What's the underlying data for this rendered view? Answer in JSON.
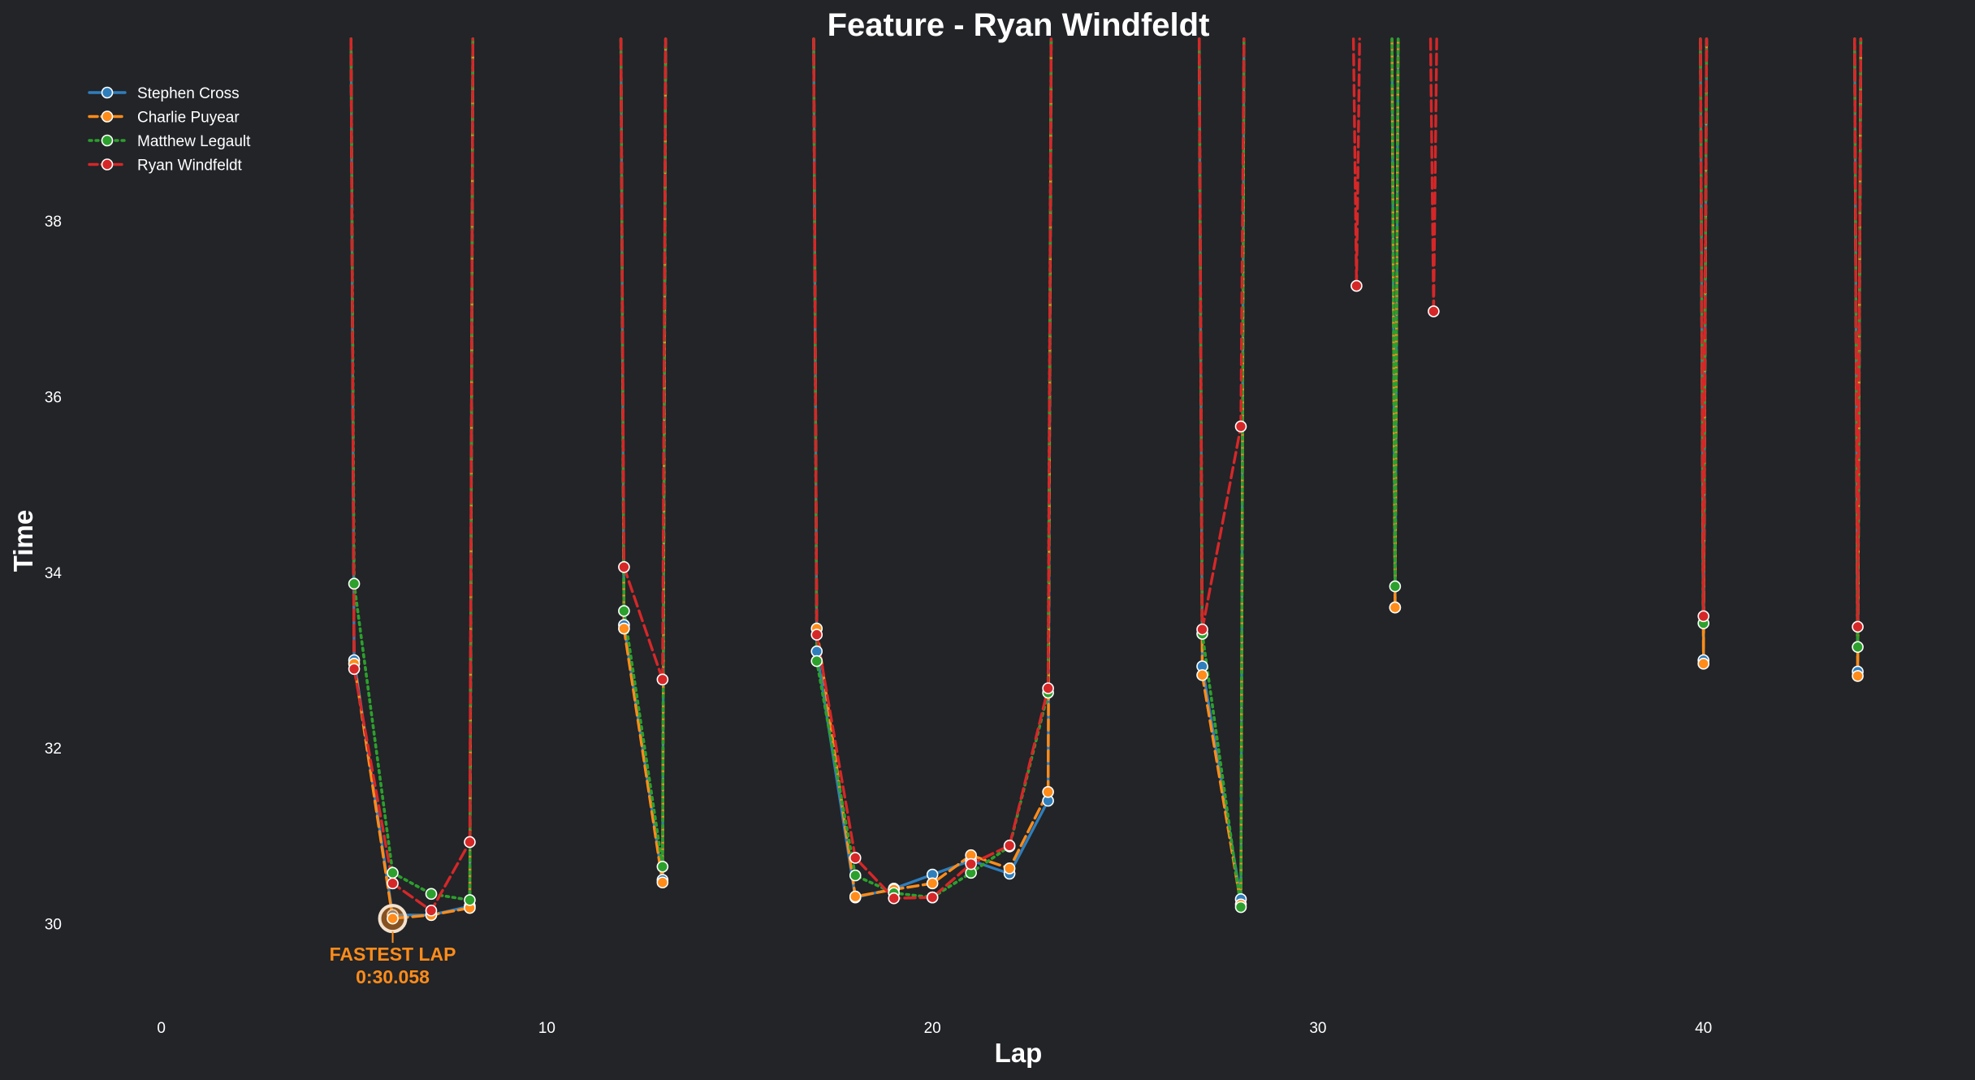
{
  "chart_data": {
    "type": "line",
    "title": "Feature - Ryan Windfeldt",
    "xlabel": "Lap",
    "ylabel": "Time",
    "xlim": [
      -2.5,
      47
    ],
    "ylim": [
      29.1,
      39.7
    ],
    "xticks": [
      0,
      10,
      20,
      30,
      40
    ],
    "yticks": [
      30,
      32,
      34,
      36,
      38
    ],
    "grid": false,
    "legend_position": "top-left",
    "series": [
      {
        "name": "Stephen Cross",
        "color": "#2f7ebc",
        "line_style": "solid",
        "points": [
          [
            5,
            33.0
          ],
          [
            6,
            30.1
          ],
          [
            7,
            30.1
          ],
          [
            8,
            30.2
          ],
          [
            12,
            33.4
          ],
          [
            13,
            30.5
          ],
          [
            17,
            33.1
          ],
          [
            18,
            30.3
          ],
          [
            19,
            30.4
          ],
          [
            20,
            30.56
          ],
          [
            21,
            30.72
          ],
          [
            22,
            30.57
          ],
          [
            23,
            31.4
          ],
          [
            27,
            32.93
          ],
          [
            28,
            30.28
          ],
          [
            32,
            33.6
          ],
          [
            40,
            33.0
          ],
          [
            44,
            32.87
          ]
        ]
      },
      {
        "name": "Charlie Puyear",
        "color": "#ff8c1a",
        "line_style": "dashed",
        "points": [
          [
            5,
            32.96
          ],
          [
            6,
            30.06
          ],
          [
            7,
            30.1
          ],
          [
            8,
            30.18
          ],
          [
            12,
            33.36
          ],
          [
            13,
            30.47
          ],
          [
            17,
            33.36
          ],
          [
            18,
            30.31
          ],
          [
            19,
            30.39
          ],
          [
            20,
            30.46
          ],
          [
            21,
            30.78
          ],
          [
            22,
            30.63
          ],
          [
            23,
            31.5
          ],
          [
            27,
            32.83
          ],
          [
            28,
            30.22
          ],
          [
            32,
            33.6
          ],
          [
            40,
            32.96
          ],
          [
            44,
            32.82
          ]
        ]
      },
      {
        "name": "Matthew Legault",
        "color": "#2ca02c",
        "line_style": "dotted",
        "points": [
          [
            5,
            33.87
          ],
          [
            6,
            30.58
          ],
          [
            7,
            30.34
          ],
          [
            8,
            30.27
          ],
          [
            12,
            33.56
          ],
          [
            13,
            30.65
          ],
          [
            17,
            32.99
          ],
          [
            18,
            30.55
          ],
          [
            19,
            30.35
          ],
          [
            20,
            30.3
          ],
          [
            21,
            30.58
          ],
          [
            22,
            30.88
          ],
          [
            23,
            32.63
          ],
          [
            27,
            33.3
          ],
          [
            28,
            30.19
          ],
          [
            32,
            33.84
          ],
          [
            40,
            33.42
          ],
          [
            44,
            33.15
          ]
        ]
      },
      {
        "name": "Ryan Windfeldt",
        "color": "#d62728",
        "line_style": "dashed",
        "points": [
          [
            5,
            32.9
          ],
          [
            6,
            30.46
          ],
          [
            7,
            30.15
          ],
          [
            8,
            30.93
          ],
          [
            12,
            34.06
          ],
          [
            13,
            32.78
          ],
          [
            17,
            33.29
          ],
          [
            18,
            30.75
          ],
          [
            19,
            30.29
          ],
          [
            20,
            30.3
          ],
          [
            21,
            30.68
          ],
          [
            22,
            30.89
          ],
          [
            23,
            32.68
          ],
          [
            27,
            33.35
          ],
          [
            28,
            35.66
          ],
          [
            31,
            37.26
          ],
          [
            33,
            36.97
          ],
          [
            40,
            33.5
          ],
          [
            44,
            33.38
          ]
        ]
      }
    ],
    "annotations": [
      {
        "text": "FASTEST LAP",
        "x": 6,
        "y": 30.06
      },
      {
        "text": "0:30.058",
        "x": 6,
        "y": 30.06
      }
    ]
  }
}
